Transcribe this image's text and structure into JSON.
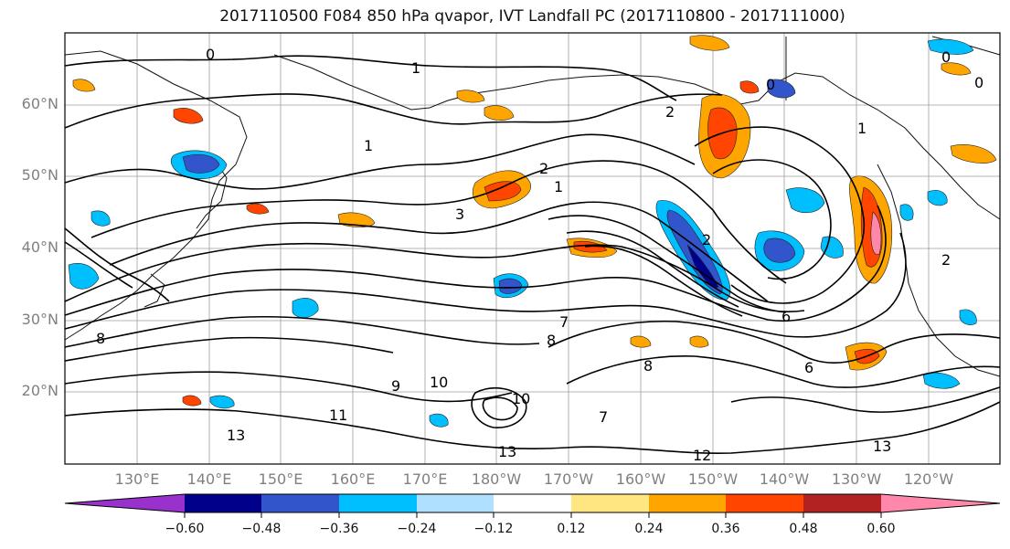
{
  "title": "2017110500 F084 850 hPa qvapor, IVT Landfall PC (2017110800 - 2017111000)",
  "lat_labels": [
    "60°N",
    "50°N",
    "40°N",
    "30°N",
    "20°N"
  ],
  "lon_labels": [
    "130°E",
    "140°E",
    "150°E",
    "160°E",
    "170°E",
    "180°W",
    "170°W",
    "160°W",
    "150°W",
    "140°W",
    "130°W",
    "120°W"
  ],
  "contour_labels": [
    "1",
    "0",
    "0",
    "0",
    "0",
    "2",
    "1",
    "1",
    "2",
    "3",
    "1",
    "2",
    "7",
    "8",
    "8",
    "9",
    "10",
    "10",
    "11",
    "12",
    "13",
    "13",
    "6",
    "7",
    "6",
    "8",
    "13",
    "2"
  ],
  "colorbar": {
    "ticks": [
      "−0.60",
      "−0.48",
      "−0.36",
      "−0.24",
      "−0.12",
      "0.12",
      "0.24",
      "0.36",
      "0.48",
      "0.60"
    ],
    "colors": [
      "#9932CC",
      "#00008B",
      "#3355CC",
      "#00BFFF",
      "#B0E0FF",
      "#FFFFFF",
      "#FFE680",
      "#FFA500",
      "#FF4500",
      "#B22222",
      "#FF88AA"
    ]
  }
}
